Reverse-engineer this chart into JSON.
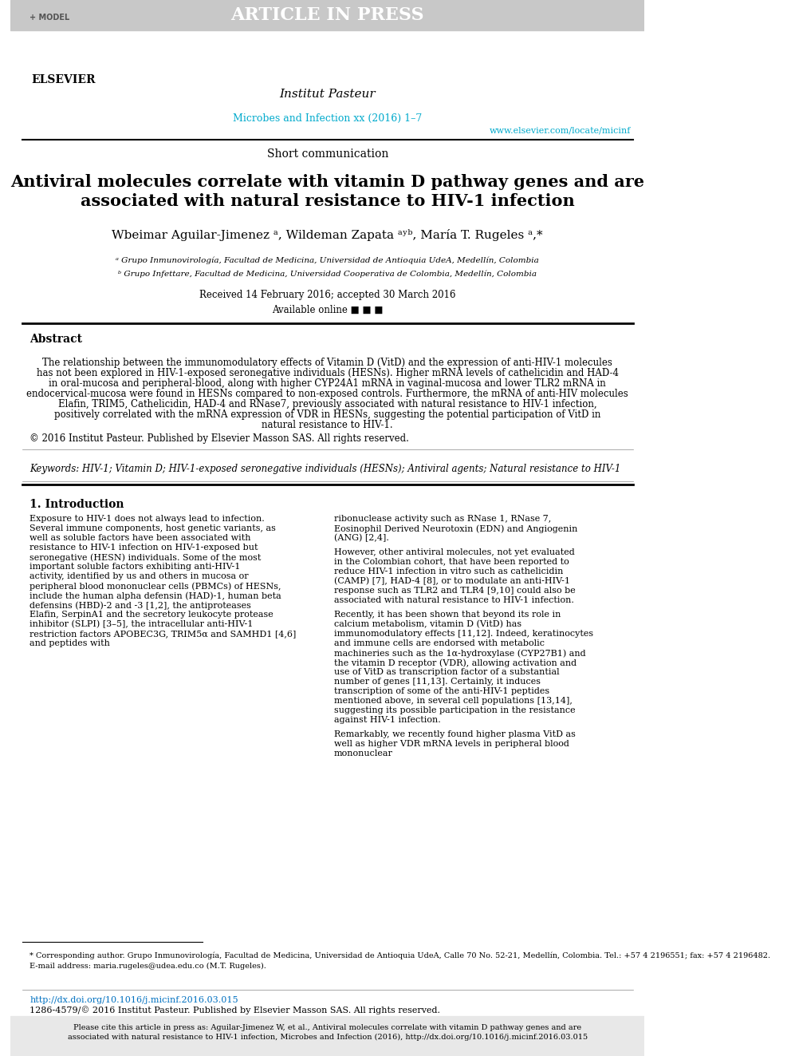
{
  "bg_color": "#ffffff",
  "header_bar_color": "#c8c8c8",
  "header_text": "ARTICLE IN PRESS",
  "header_model": "+ MODEL",
  "header_text_color": "#ffffff",
  "journal_name": "Microbes and Infection xx (2016) 1–7",
  "journal_name_color": "#00aacc",
  "journal_url": "www.elsevier.com/locate/micinf",
  "journal_url_color": "#00aacc",
  "section_label": "Short communication",
  "title_line1": "Antiviral molecules correlate with vitamin D pathway genes and are",
  "title_line2": "associated with natural resistance to HIV-1 infection",
  "authors": "Wbeimar Aguilar-Jimenez ᵃ, Wildeman Zapata ᵃʸᵇ, María T. Rugeles ᵃ,*",
  "affil_a": "ᵃ Grupo Inmunovirología, Facultad de Medicina, Universidad de Antioquia UdeA, Medellín, Colombia",
  "affil_b": "ᵇ Grupo Infettare, Facultad de Medicina, Universidad Cooperativa de Colombia, Medellín, Colombia",
  "received": "Received 14 February 2016; accepted 30 March 2016",
  "available": "Available online ■ ■ ■",
  "abstract_title": "Abstract",
  "abstract_body": "The relationship between the immunomodulatory effects of Vitamin D (VitD) and the expression of anti-HIV-1 molecules has not been explored in HIV-1-exposed seronegative individuals (HESNs). Higher mRNA levels of cathelicidin and HAD-4 in oral-mucosa and peripheral-blood, along with higher CYP24A1 mRNA in vaginal-mucosa and lower TLR2 mRNA in endocervical-mucosa were found in HESNs compared to non-exposed controls. Furthermore, the mRNA of anti-HIV molecules Elafin, TRIM5, Cathelicidin, HAD-4 and RNase7, previously associated with natural resistance to HIV-1 infection, positively correlated with the mRNA expression of VDR in HESNs, suggesting the potential participation of VitD in natural resistance to HIV-1.",
  "copyright": "© 2016 Institut Pasteur. Published by Elsevier Masson SAS. All rights reserved.",
  "keywords_label": "Keywords:",
  "keywords": "HIV-1; Vitamin D; HIV-1-exposed seronegative individuals (HESNs); Antiviral agents; Natural resistance to HIV-1",
  "intro_title": "1. Introduction",
  "intro_col1_para1": "Exposure to HIV-1 does not always lead to infection. Several immune components, host genetic variants, as well as soluble factors have been associated with resistance to HIV-1 infection on HIV-1-exposed but seronegative (HESN) individuals. Some of the most important soluble factors exhibiting anti-HIV-1 activity, identified by us and others in mucosa or peripheral blood mononuclear cells (PBMCs) of HESNs, include the human alpha defensin (HAD)-1, human beta defensins (HBD)-2 and -3 [1,2], the antiproteases Elafin, SerpinA1 and the secretory leukocyte protease inhibitor (SLPI) [3–5], the intracellular anti-HIV-1 restriction factors APOBEC3G, TRIM5α and SAMHD1 [4,6] and peptides with",
  "intro_col2_para1": "ribonuclease activity such as RNase 1, RNase 7, Eosinophil Derived Neurotoxin (EDN) and Angiogenin (ANG) [2,4].",
  "intro_col2_para2": "However, other antiviral molecules, not yet evaluated in the Colombian cohort, that have been reported to reduce HIV-1 infection in vitro such as cathelicidin (CAMP) [7], HAD-4 [8], or to modulate an anti-HIV-1 response such as TLR2 and TLR4 [9,10] could also be associated with natural resistance to HIV-1 infection.",
  "intro_col2_para3": "Recently, it has been shown that beyond its role in calcium metabolism, vitamin D (VitD) has immunomodulatory effects [11,12]. Indeed, keratinocytes and immune cells are endorsed with metabolic machineries such as the 1α-hydroxylase (CYP27B1) and the vitamin D receptor (VDR), allowing activation and use of VitD as transcription factor of a substantial number of genes [11,13]. Certainly, it induces transcription of some of the anti-HIV-1 peptides mentioned above, in several cell populations [13,14], suggesting its possible participation in the resistance against HIV-1 infection.",
  "intro_col2_para4": "Remarkably, we recently found higher plasma VitD as well as higher VDR mRNA levels in peripheral blood mononuclear",
  "footnote_star": "* Corresponding author. Grupo Inmunovirología, Facultad de Medicina, Universidad de Antioquia UdeA, Calle 70 No. 52-21, Medellín, Colombia. Tel.: +57 4 2196551; fax: +57 4 2196482.",
  "footnote_email_label": "E-mail address:",
  "footnote_email": "maria.rugeles@udea.edu.co",
  "footnote_email_rest": "(M.T. Rugeles).",
  "doi_line": "http://dx.doi.org/10.1016/j.micinf.2016.03.015",
  "doi_color": "#0070c0",
  "issn_line": "1286-4579/© 2016 Institut Pasteur. Published by Elsevier Masson SAS. All rights reserved.",
  "footer_cite": "Please cite this article in press as: Aguilar-Jimenez W, et al., Antiviral molecules correlate with vitamin D pathway genes and are associated with natural resistance to HIV-1 infection, Microbes and Infection (2016), http://dx.doi.org/10.1016/j.micinf.2016.03.015",
  "footer_bg": "#e8e8e8",
  "separator_color": "#000000",
  "thin_separator_color": "#888888"
}
